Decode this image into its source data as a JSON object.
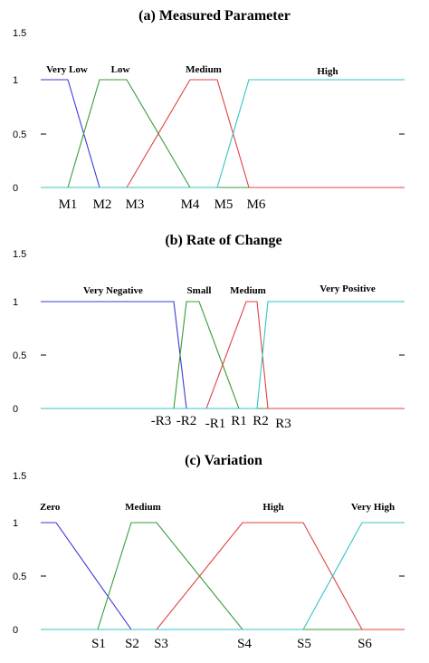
{
  "chart_data": [
    {
      "type": "line",
      "title": "(a) Measured Parameter",
      "ylim": [
        0,
        1.5
      ],
      "yticks": [
        "0",
        "0.5",
        "1",
        "1.5"
      ],
      "x_ticks": [
        "M1",
        "M2",
        "M3",
        "M4",
        "M5",
        "M6"
      ],
      "series": [
        {
          "name": "Very Low",
          "color": "#3a3ad6",
          "points": [
            [
              "start",
              1
            ],
            [
              "M1",
              1
            ],
            [
              "M2",
              0
            ],
            [
              "end",
              0
            ]
          ]
        },
        {
          "name": "Low",
          "color": "#3a9a3a",
          "points": [
            [
              "start",
              0
            ],
            [
              "M1",
              0
            ],
            [
              "M2",
              1
            ],
            [
              "M3",
              1
            ],
            [
              "M4",
              0
            ],
            [
              "end",
              0
            ]
          ]
        },
        {
          "name": "Medium",
          "color": "#e04040",
          "points": [
            [
              "start",
              0
            ],
            [
              "M3",
              0
            ],
            [
              "M4",
              1
            ],
            [
              "M5",
              1
            ],
            [
              "M6",
              0
            ],
            [
              "end",
              0
            ]
          ]
        },
        {
          "name": "High",
          "color": "#33c4c4",
          "points": [
            [
              "start",
              0
            ],
            [
              "M5",
              0
            ],
            [
              "M6",
              1
            ],
            [
              "end",
              1
            ]
          ]
        }
      ]
    },
    {
      "type": "line",
      "title": "(b) Rate of Change",
      "ylim": [
        0,
        1.5
      ],
      "yticks": [
        "0",
        "0.5",
        "1",
        "1.5"
      ],
      "x_ticks": [
        "-R3",
        "-R2",
        "-R1",
        "R1",
        "R2",
        "R3"
      ],
      "series": [
        {
          "name": "Very Negative",
          "color": "#3a3ad6",
          "points": [
            [
              "start",
              1
            ],
            [
              "-R3",
              1
            ],
            [
              "-R2",
              0
            ],
            [
              "end",
              0
            ]
          ]
        },
        {
          "name": "Small",
          "color": "#3a9a3a",
          "points": [
            [
              "start",
              0
            ],
            [
              "-R3",
              0
            ],
            [
              "-R2",
              1
            ],
            [
              "-R1",
              1
            ],
            [
              "R1",
              0
            ],
            [
              "end",
              0
            ]
          ]
        },
        {
          "name": "Medium",
          "color": "#e04040",
          "points": [
            [
              "start",
              0
            ],
            [
              "-R1",
              0
            ],
            [
              "R1",
              1
            ],
            [
              "R2",
              1
            ],
            [
              "R3",
              0
            ],
            [
              "end",
              0
            ]
          ]
        },
        {
          "name": "Very Positive",
          "color": "#33c4c4",
          "points": [
            [
              "start",
              0
            ],
            [
              "R2",
              0
            ],
            [
              "R3",
              1
            ],
            [
              "end",
              1
            ]
          ]
        }
      ]
    },
    {
      "type": "line",
      "title": "(c) Variation",
      "ylim": [
        0,
        1.5
      ],
      "yticks": [
        "0",
        "0.5",
        "1",
        "1.5"
      ],
      "x_ticks": [
        "S1",
        "S2",
        "S3",
        "S4",
        "S5",
        "S6"
      ],
      "series": [
        {
          "name": "Zero",
          "color": "#3a3ad6",
          "points": [
            [
              "start",
              1
            ],
            [
              "S1",
              1
            ],
            [
              "S2",
              0
            ],
            [
              "end",
              0
            ]
          ]
        },
        {
          "name": "Medium",
          "color": "#3a9a3a",
          "points": [
            [
              "start",
              0
            ],
            [
              "S1",
              0
            ],
            [
              "S2",
              1
            ],
            [
              "S3",
              1
            ],
            [
              "S4",
              0
            ],
            [
              "end",
              0
            ]
          ]
        },
        {
          "name": "High",
          "color": "#e04040",
          "points": [
            [
              "start",
              0
            ],
            [
              "S3",
              0
            ],
            [
              "S4",
              1
            ],
            [
              "S5",
              1
            ],
            [
              "S6",
              0
            ],
            [
              "end",
              0
            ]
          ]
        },
        {
          "name": "Very High",
          "color": "#33c4c4",
          "points": [
            [
              "start",
              0
            ],
            [
              "S5",
              0
            ],
            [
              "S6",
              1
            ],
            [
              "end",
              1
            ]
          ]
        }
      ]
    }
  ]
}
